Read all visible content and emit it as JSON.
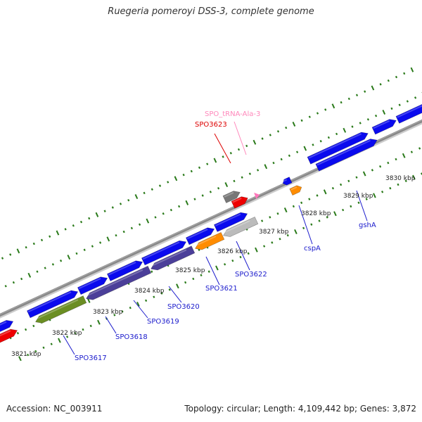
{
  "title": "Ruegeria pomeroyi DSS-3, complete genome",
  "footer": {
    "accession": "Accession: NC_003911",
    "summary": "Topology: circular; Length: 4,109,442 bp; Genes: 3,872"
  },
  "colors": {
    "strand_plus": "#0a0aee",
    "strand_minus": "#0a0aee",
    "label_gene": "#1a1acc",
    "label_trna": "#ff88bb",
    "label_red": "#dd0000",
    "green_gene": "#6b8e23",
    "purple_gene": "#4b3f99",
    "orange_gene": "#ff8c00",
    "gray_gene": "#bbbbbb",
    "dark_gray_gene": "#777777",
    "red_gene": "#ee0000",
    "pink_trna": "#ff77bb",
    "backbone": "#888888",
    "tick_green": "#2a7a1a"
  },
  "scale_labels": [
    {
      "text": "3821 kbp",
      "kb": 3821
    },
    {
      "text": "3822 kbp",
      "kb": 3822
    },
    {
      "text": "3823 kbp",
      "kb": 3823
    },
    {
      "text": "3824 kbp",
      "kb": 3824
    },
    {
      "text": "3825 kbp",
      "kb": 3825
    },
    {
      "text": "3826 kbp",
      "kb": 3826
    },
    {
      "text": "3827 kbp",
      "kb": 3827
    },
    {
      "text": "3828 kbp",
      "kb": 3828
    },
    {
      "text": "3829 kbp",
      "kb": 3829
    },
    {
      "text": "3830 kbp",
      "kb": 3830
    }
  ],
  "gene_labels": [
    {
      "text": "SPO3617",
      "color": "#1a1acc"
    },
    {
      "text": "SPO3618",
      "color": "#1a1acc"
    },
    {
      "text": "SPO3619",
      "color": "#1a1acc"
    },
    {
      "text": "SPO3620",
      "color": "#1a1acc"
    },
    {
      "text": "SPO3621",
      "color": "#1a1acc"
    },
    {
      "text": "SPO3622",
      "color": "#1a1acc"
    },
    {
      "text": "cspA",
      "color": "#1a1acc"
    },
    {
      "text": "gshA",
      "color": "#1a1acc"
    },
    {
      "text": "SPO3623",
      "color": "#dd0000"
    },
    {
      "text": "SPO_tRNA-Ala-3",
      "color": "#ff88bb"
    }
  ]
}
